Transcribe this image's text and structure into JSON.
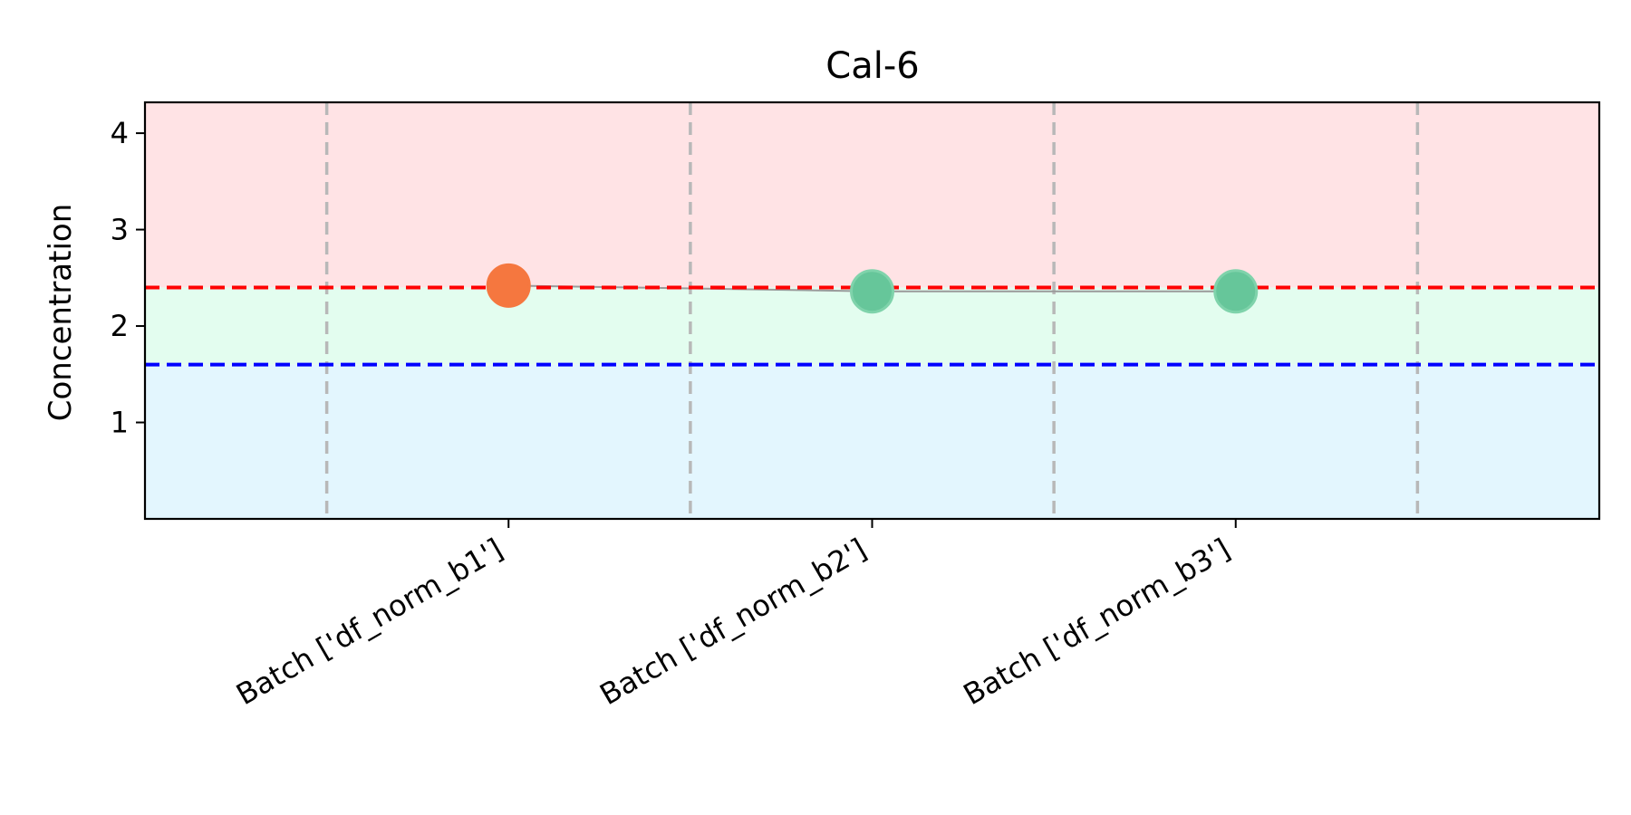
{
  "chart_data": {
    "type": "scatter",
    "title": "Cal-6",
    "xlabel": "",
    "ylabel": "Concentration",
    "categories": [
      "Batch ['df_norm_b1']",
      "Batch ['df_norm_b2']",
      "Batch ['df_norm_b3']"
    ],
    "values": [
      2.42,
      2.36,
      2.36
    ],
    "point_status": [
      "above_upper",
      "within",
      "within"
    ],
    "ylim": [
      0,
      4.32
    ],
    "yticks": [
      1,
      2,
      3,
      4
    ],
    "xlim": [
      -1,
      3
    ],
    "upper_limit": 2.4,
    "lower_limit": 1.6,
    "batch_separators": [
      -0.5,
      0.5,
      1.5,
      2.5
    ],
    "grid": false,
    "legend": "none",
    "colors": {
      "above_band": "#ffe3e5",
      "within_band": "#e3fdef",
      "below_band": "#e3f6fe",
      "upper_line": "#ff0000",
      "lower_line": "#0000ff",
      "separator": "#b8b8b8",
      "connector": "#9a9a9a",
      "point_above_upper": "#f5773f",
      "point_within": "#66c69a",
      "point_within_edge": "#7fd3ab"
    }
  }
}
